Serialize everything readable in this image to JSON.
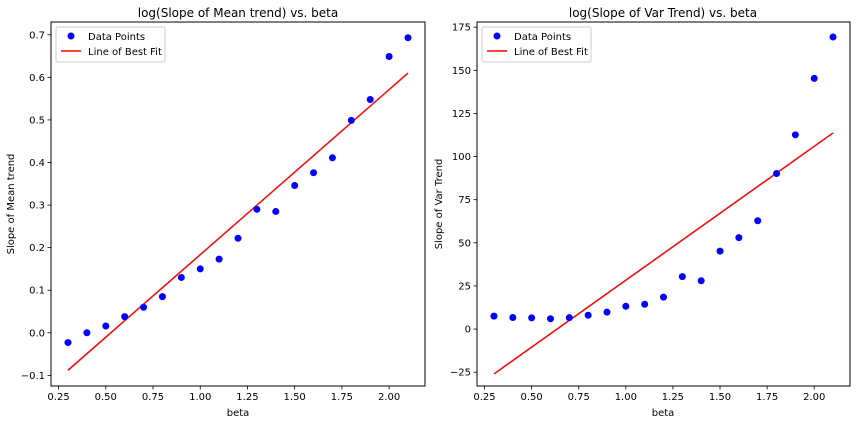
{
  "chart_data": [
    {
      "type": "scatter",
      "title": "log(Slope of Mean trend) vs. beta",
      "xlabel": "beta",
      "ylabel": "Slope of Mean trend",
      "xlim": [
        0.21,
        2.19
      ],
      "ylim": [
        -0.125,
        0.73
      ],
      "xticks": [
        0.25,
        0.5,
        0.75,
        1.0,
        1.25,
        1.5,
        1.75,
        2.0
      ],
      "xtick_labels": [
        "0.25",
        "0.50",
        "0.75",
        "1.00",
        "1.25",
        "1.50",
        "1.75",
        "2.00"
      ],
      "yticks": [
        -0.1,
        0.0,
        0.1,
        0.2,
        0.3,
        0.4,
        0.5,
        0.6,
        0.7
      ],
      "ytick_labels": [
        "−0.1",
        "0.0",
        "0.1",
        "0.2",
        "0.3",
        "0.4",
        "0.5",
        "0.6",
        "0.7"
      ],
      "legend": [
        "Data Points",
        "Line of Best Fit"
      ],
      "legend_position": "upper-left",
      "series": [
        {
          "name": "Data Points",
          "kind": "scatter",
          "color": "#0000ff",
          "x": [
            0.3,
            0.4,
            0.5,
            0.6,
            0.7,
            0.8,
            0.9,
            1.0,
            1.1,
            1.2,
            1.3,
            1.4,
            1.5,
            1.6,
            1.7,
            1.8,
            1.9,
            2.0,
            2.1
          ],
          "y": [
            -0.023,
            0.0,
            0.016,
            0.038,
            0.06,
            0.085,
            0.13,
            0.15,
            0.173,
            0.222,
            0.29,
            0.285,
            0.346,
            0.376,
            0.411,
            0.499,
            0.548,
            0.649,
            0.693
          ]
        },
        {
          "name": "Line of Best Fit",
          "kind": "line",
          "color": "#ff0000",
          "x": [
            0.3,
            2.1
          ],
          "y": [
            -0.088,
            0.61
          ]
        }
      ]
    },
    {
      "type": "scatter",
      "title": "log(Slope of Var Trend) vs. beta",
      "xlabel": "beta",
      "ylabel": "Slope of Var Trend",
      "xlim": [
        0.21,
        2.19
      ],
      "ylim": [
        -33,
        178
      ],
      "xticks": [
        0.25,
        0.5,
        0.75,
        1.0,
        1.25,
        1.5,
        1.75,
        2.0
      ],
      "xtick_labels": [
        "0.25",
        "0.50",
        "0.75",
        "1.00",
        "1.25",
        "1.50",
        "1.75",
        "2.00"
      ],
      "yticks": [
        -25,
        0,
        25,
        50,
        75,
        100,
        125,
        150,
        175
      ],
      "ytick_labels": [
        "−25",
        "0",
        "25",
        "50",
        "75",
        "100",
        "125",
        "150",
        "175"
      ],
      "legend": [
        "Data Points",
        "Line of Best Fit"
      ],
      "legend_position": "upper-left",
      "series": [
        {
          "name": "Data Points",
          "kind": "scatter",
          "color": "#0000ff",
          "x": [
            0.3,
            0.4,
            0.5,
            0.6,
            0.7,
            0.8,
            0.9,
            1.0,
            1.1,
            1.2,
            1.3,
            1.4,
            1.5,
            1.6,
            1.7,
            1.8,
            1.9,
            2.0,
            2.1
          ],
          "y": [
            7.5,
            6.7,
            6.5,
            6.0,
            6.6,
            8.0,
            9.8,
            13.2,
            14.4,
            18.5,
            30.4,
            28.0,
            45.2,
            53.0,
            62.8,
            90.2,
            112.6,
            145.3,
            169.3
          ]
        },
        {
          "name": "Line of Best Fit",
          "kind": "line",
          "color": "#ff0000",
          "x": [
            0.3,
            2.1
          ],
          "y": [
            -26.0,
            113.7
          ]
        }
      ]
    }
  ]
}
